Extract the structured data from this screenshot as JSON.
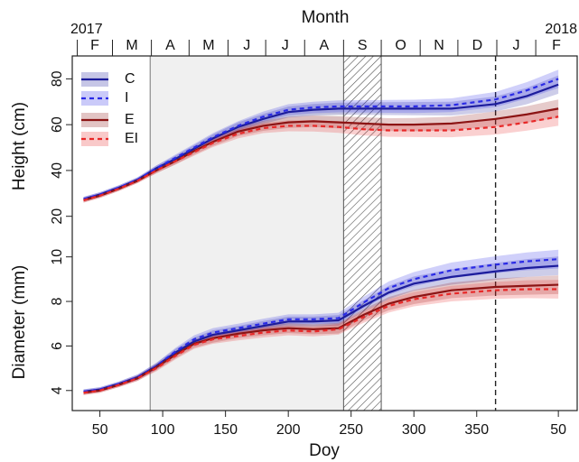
{
  "chart_data": [
    {
      "type": "line",
      "ylabel": "Height (cm)",
      "x2label": "Month",
      "x2ticks": [
        32,
        60,
        91,
        121,
        152,
        182,
        213,
        244,
        274,
        305,
        335,
        366,
        397
      ],
      "x2_categories": [
        "F",
        "M",
        "A",
        "M",
        "J",
        "J",
        "A",
        "S",
        "O",
        "N",
        "D",
        "J",
        "F"
      ],
      "x2_years": [
        "2017",
        "2018"
      ],
      "shaded_span": [
        90,
        244
      ],
      "hatched_span": [
        244,
        274
      ],
      "dashed_line_x": 365,
      "xlim": [
        28,
        430
      ],
      "ylim": [
        12,
        90
      ],
      "yticks": [
        20,
        40,
        60,
        80
      ],
      "legend": "upper left",
      "x": [
        37,
        50,
        65,
        80,
        95,
        110,
        125,
        140,
        160,
        180,
        200,
        220,
        240,
        260,
        280,
        300,
        330,
        365,
        390,
        415
      ],
      "series": [
        {
          "name": "C",
          "color": "#1c1c9c",
          "dashed": false,
          "values": [
            27.5,
            29.5,
            32.5,
            36,
            41,
            45,
            49.5,
            54,
            59,
            62.5,
            65.5,
            66.5,
            67,
            67,
            67,
            67,
            67,
            69,
            72.5,
            77.5
          ],
          "errors": [
            1,
            1,
            1,
            1,
            1.2,
            1.4,
            1.6,
            1.8,
            2,
            2.2,
            2.4,
            2.5,
            2.6,
            2.7,
            2.8,
            2.9,
            3,
            3.3,
            3.6,
            4
          ]
        },
        {
          "name": "I",
          "color": "#2a2ae6",
          "dashed": true,
          "values": [
            27.5,
            29.5,
            32.5,
            36,
            41,
            45.5,
            50,
            54.5,
            59.5,
            63.5,
            66.5,
            67.5,
            68,
            68,
            68,
            68,
            68.5,
            71,
            75,
            80
          ],
          "errors": [
            1,
            1,
            1,
            1,
            1.2,
            1.4,
            1.6,
            1.8,
            2,
            2.2,
            2.4,
            2.5,
            2.6,
            2.7,
            2.8,
            2.9,
            3,
            3.3,
            3.6,
            4
          ]
        },
        {
          "name": "E",
          "color": "#8c1414",
          "dashed": false,
          "values": [
            27,
            29,
            32,
            35.5,
            40,
            44,
            48.5,
            52.5,
            57,
            59.5,
            61,
            61.5,
            61,
            60.5,
            60,
            60,
            60.5,
            62.5,
            64.5,
            67
          ],
          "errors": [
            1,
            1,
            1,
            1,
            1.2,
            1.4,
            1.6,
            1.8,
            2,
            2.2,
            2.4,
            2.5,
            2.6,
            2.7,
            2.8,
            2.9,
            3,
            3.3,
            3.6,
            4
          ]
        },
        {
          "name": "EI",
          "color": "#e82828",
          "dashed": true,
          "values": [
            27,
            29,
            32,
            35.5,
            40,
            44,
            48,
            52,
            56,
            58.5,
            59.5,
            59.5,
            59,
            58,
            57.5,
            57.5,
            57.5,
            59,
            61,
            63.5
          ],
          "errors": [
            1,
            1,
            1,
            1,
            1.2,
            1.4,
            1.6,
            1.8,
            2,
            2.2,
            2.4,
            2.5,
            2.6,
            2.7,
            2.8,
            2.9,
            3,
            3.3,
            3.6,
            4
          ]
        }
      ]
    },
    {
      "type": "line",
      "ylabel": "Diameter (mm)",
      "xlabel": "Doy",
      "xlim": [
        28,
        430
      ],
      "xticks": [
        50,
        100,
        150,
        200,
        250,
        300,
        350,
        {
          "value": 415,
          "label": "50"
        }
      ],
      "ylim": [
        3.1,
        11
      ],
      "yticks": [
        4,
        6,
        8,
        10
      ],
      "x": [
        37,
        50,
        65,
        80,
        95,
        110,
        125,
        140,
        160,
        180,
        200,
        220,
        240,
        260,
        280,
        300,
        330,
        365,
        390,
        415
      ],
      "series": [
        {
          "color": "#1c1c9c",
          "dashed": false,
          "values": [
            3.95,
            4.05,
            4.3,
            4.6,
            5.1,
            5.7,
            6.2,
            6.5,
            6.7,
            6.9,
            7.1,
            7.1,
            7.15,
            7.8,
            8.4,
            8.8,
            9.1,
            9.35,
            9.5,
            9.6
          ],
          "errors": [
            0.1,
            0.1,
            0.1,
            0.12,
            0.14,
            0.16,
            0.18,
            0.2,
            0.2,
            0.22,
            0.22,
            0.22,
            0.24,
            0.26,
            0.3,
            0.32,
            0.35,
            0.38,
            0.4,
            0.42
          ]
        },
        {
          "color": "#2a2ae6",
          "dashed": true,
          "values": [
            3.95,
            4.05,
            4.3,
            4.6,
            5.1,
            5.75,
            6.3,
            6.6,
            6.8,
            7.0,
            7.2,
            7.2,
            7.25,
            7.95,
            8.6,
            9.0,
            9.4,
            9.65,
            9.8,
            9.9
          ],
          "errors": [
            0.1,
            0.1,
            0.1,
            0.12,
            0.14,
            0.16,
            0.18,
            0.2,
            0.2,
            0.22,
            0.22,
            0.22,
            0.24,
            0.26,
            0.3,
            0.32,
            0.35,
            0.38,
            0.4,
            0.42
          ]
        },
        {
          "color": "#8c1414",
          "dashed": false,
          "values": [
            3.9,
            4.0,
            4.25,
            4.55,
            5.05,
            5.6,
            6.1,
            6.35,
            6.55,
            6.7,
            6.8,
            6.75,
            6.8,
            7.4,
            7.9,
            8.2,
            8.5,
            8.65,
            8.7,
            8.75
          ],
          "errors": [
            0.1,
            0.1,
            0.1,
            0.12,
            0.14,
            0.16,
            0.18,
            0.2,
            0.2,
            0.22,
            0.22,
            0.22,
            0.24,
            0.26,
            0.3,
            0.32,
            0.35,
            0.38,
            0.4,
            0.42
          ]
        },
        {
          "color": "#e82828",
          "dashed": true,
          "values": [
            3.9,
            4.0,
            4.25,
            4.55,
            5.0,
            5.55,
            6.05,
            6.3,
            6.45,
            6.6,
            6.7,
            6.65,
            6.75,
            7.3,
            7.8,
            8.1,
            8.35,
            8.5,
            8.55,
            8.55
          ],
          "errors": [
            0.1,
            0.1,
            0.1,
            0.12,
            0.14,
            0.16,
            0.18,
            0.2,
            0.2,
            0.22,
            0.22,
            0.22,
            0.24,
            0.26,
            0.3,
            0.32,
            0.35,
            0.38,
            0.4,
            0.42
          ]
        }
      ]
    }
  ]
}
